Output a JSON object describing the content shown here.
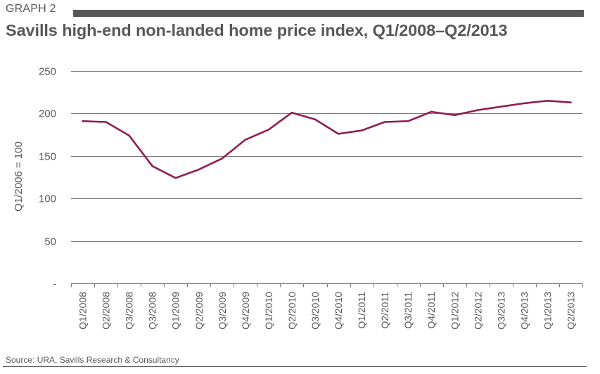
{
  "header": {
    "graph_label": "GRAPH 2",
    "title": "Savills high-end non-landed home price index, Q1/2008–Q2/2013"
  },
  "footer": {
    "source": "Source: URA, Savills Research & Consultancy"
  },
  "colors": {
    "line": "#8e1e52",
    "grid": "#7a7a7a",
    "text": "#58585b",
    "header_bar": "#58585a"
  },
  "chart_data": {
    "type": "line",
    "title": "Savills high-end non-landed home price index, Q1/2008–Q2/2013",
    "xlabel": "",
    "ylabel": "Q1/2006 = 100",
    "ylim": [
      0,
      250
    ],
    "y_ticks": [
      {
        "value": 250,
        "label": "250"
      },
      {
        "value": 200,
        "label": "200"
      },
      {
        "value": 150,
        "label": "150"
      },
      {
        "value": 100,
        "label": "100"
      },
      {
        "value": 50,
        "label": "50"
      },
      {
        "value": 0,
        "label": "-"
      }
    ],
    "grid": true,
    "legend": "none",
    "categories": [
      "Q1/2008",
      "Q2/2008",
      "Q3/2008",
      "Q3/2008",
      "Q1/2009",
      "Q2/2009",
      "Q3/2009",
      "Q4/2009",
      "Q1/2010",
      "Q2/2010",
      "Q3/2010",
      "Q4/2010",
      "Q1/2011",
      "Q2/2011",
      "Q3/2011",
      "Q4/2011",
      "Q1/2012",
      "Q2/2012",
      "Q3/2013",
      "Q4/2013",
      "Q1/2013",
      "Q2/2013"
    ],
    "series": [
      {
        "name": "Savills high-end non-landed home price index",
        "values": [
          191,
          190,
          174,
          138,
          124,
          134,
          147,
          169,
          181,
          201,
          193,
          176,
          180,
          190,
          191,
          202,
          198,
          204,
          208,
          212,
          215,
          213
        ]
      }
    ]
  }
}
